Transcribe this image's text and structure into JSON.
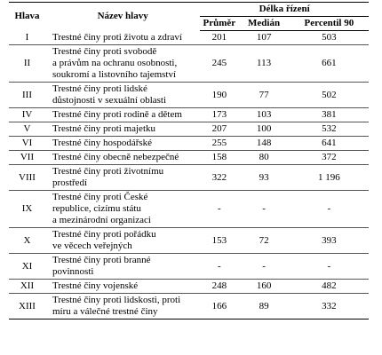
{
  "table": {
    "header": {
      "chapter": "Hlava",
      "name": "Název hlavy",
      "duration": "Délka řízení",
      "mean": "Průměr",
      "median": "Medián",
      "p90": "Percentil 90"
    },
    "rows": [
      {
        "chapter": "I",
        "name": [
          "Trestné činy proti životu a zdraví"
        ],
        "mean": 201,
        "median": 107,
        "p90": 503
      },
      {
        "chapter": "II",
        "name": [
          "Trestné činy proti svobodě",
          "a právům na ochranu osobnosti,",
          "soukromí a listovního tajemství"
        ],
        "mean": 245,
        "median": 113,
        "p90": 661
      },
      {
        "chapter": "III",
        "name": [
          "Trestné činy proti lidské",
          "důstojnosti v sexuální oblasti"
        ],
        "mean": 190,
        "median": 77,
        "p90": 502
      },
      {
        "chapter": "IV",
        "name": [
          "Trestné činy proti rodině a dětem"
        ],
        "mean": 173,
        "median": 103,
        "p90": 381
      },
      {
        "chapter": "V",
        "name": [
          "Trestné činy proti majetku"
        ],
        "mean": 207,
        "median": 100,
        "p90": 532
      },
      {
        "chapter": "VI",
        "name": [
          "Trestné činy hospodářské"
        ],
        "mean": 255,
        "median": 148,
        "p90": 641
      },
      {
        "chapter": "VII",
        "name": [
          "Trestné činy obecně nebezpečné"
        ],
        "mean": 158,
        "median": 80,
        "p90": 372
      },
      {
        "chapter": "VIII",
        "name": [
          "Trestné činy proti životnímu",
          "prostředí"
        ],
        "mean": 322,
        "median": 93,
        "p90": "1 196"
      },
      {
        "chapter": "IX",
        "name": [
          "Trestné činy proti České",
          "republice, cizímu státu",
          "a mezinárodní organizaci"
        ],
        "mean": "-",
        "median": "-",
        "p90": "-"
      },
      {
        "chapter": "X",
        "name": [
          "Trestné činy proti pořádku",
          "ve věcech veřejných"
        ],
        "mean": 153,
        "median": 72,
        "p90": 393
      },
      {
        "chapter": "XI",
        "name": [
          "Trestné činy proti branné",
          "povinnosti"
        ],
        "mean": "-",
        "median": "-",
        "p90": "-"
      },
      {
        "chapter": "XII",
        "name": [
          "Trestné činy vojenské"
        ],
        "mean": 248,
        "median": 160,
        "p90": 482
      },
      {
        "chapter": "XIII",
        "name": [
          "Trestné činy proti lidskosti, proti",
          "míru a válečné trestné činy"
        ],
        "mean": 166,
        "median": 89,
        "p90": 332
      }
    ]
  }
}
